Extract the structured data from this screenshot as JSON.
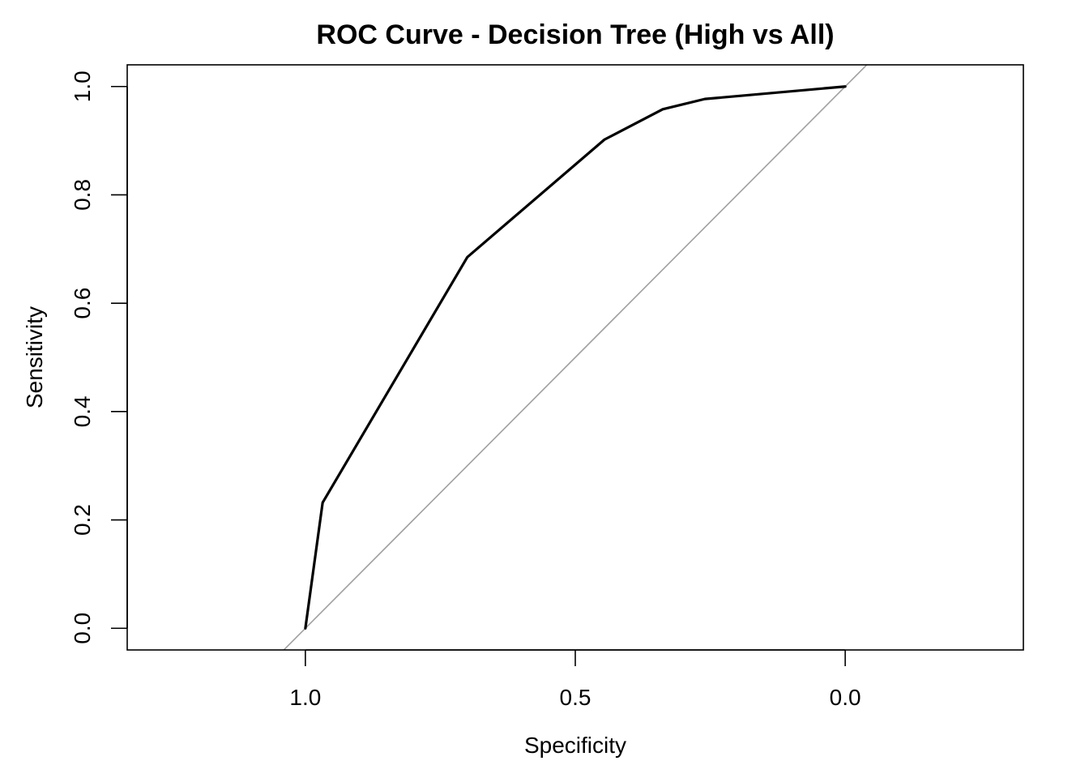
{
  "chart_data": {
    "type": "line",
    "title": "ROC Curve - Decision Tree (High vs All)",
    "xlabel": "Specificity",
    "ylabel": "Sensitivity",
    "xlim": [
      1.33,
      -0.33
    ],
    "ylim": [
      -0.04,
      1.04
    ],
    "x_reversed": true,
    "x_ticks": [
      1.0,
      0.5,
      0.0
    ],
    "x_tick_labels": [
      "1.0",
      "0.5",
      "0.0"
    ],
    "y_ticks": [
      0.0,
      0.2,
      0.4,
      0.6,
      0.8,
      1.0
    ],
    "y_tick_labels": [
      "0.0",
      "0.2",
      "0.4",
      "0.6",
      "0.8",
      "1.0"
    ],
    "grid": false,
    "series": [
      {
        "color": "#000000",
        "x": [
          1.0,
          0.968,
          0.7,
          0.446,
          0.338,
          0.26,
          0.0
        ],
        "y": [
          0.0,
          0.232,
          0.685,
          0.902,
          0.958,
          0.977,
          1.0
        ]
      }
    ],
    "reference_line": {
      "type": "diagonal",
      "color": "#a0a0a0",
      "description": "chance line where sensitivity = 1 - specificity"
    }
  }
}
